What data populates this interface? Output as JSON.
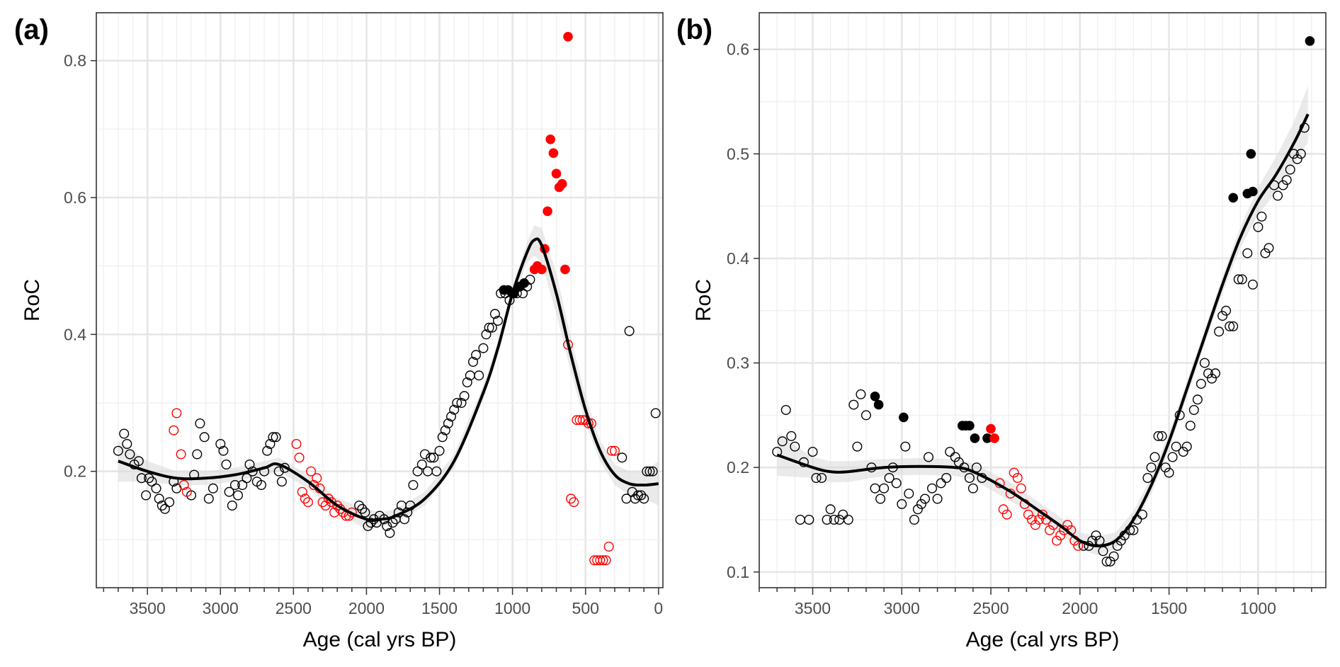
{
  "chart_data": [
    {
      "type": "scatter",
      "panel_label": "(a)",
      "xlabel": "Age (cal yrs BP)",
      "ylabel": "RoC",
      "x_reversed": true,
      "xlim": [
        3850,
        -30
      ],
      "ylim": [
        0.03,
        0.87
      ],
      "x_ticks": [
        3500,
        3000,
        2500,
        2000,
        1500,
        1000,
        500,
        0
      ],
      "x_tick_labels": [
        "3500",
        "3000",
        "2500",
        "2000",
        "1500",
        "1000",
        "500",
        "0"
      ],
      "y_ticks": [
        0.2,
        0.4,
        0.6,
        0.8
      ],
      "y_tick_labels": [
        "0.2",
        "0.4",
        "0.6",
        "0.8"
      ],
      "grid": true,
      "colors": {
        "black": "#000000",
        "red": "#ff0000",
        "band": "#d9d9d9"
      },
      "series": [
        {
          "style": "open",
          "color": "#000000",
          "x": [
            3700,
            3660,
            3640,
            3620,
            3590,
            3560,
            3540,
            3510,
            3490,
            3470,
            3440,
            3420,
            3400,
            3380,
            3350,
            3320,
            3300,
            3200,
            3180,
            3160,
            3140,
            3110,
            3080,
            3050,
            3000,
            2980,
            2960,
            2940,
            2920,
            2900,
            2880,
            2850,
            2820,
            2800,
            2780,
            2750,
            2720,
            2700,
            2680,
            2660,
            2640,
            2620,
            2600,
            2580,
            2560,
            2050,
            2030,
            2010,
            1990,
            1970,
            1950,
            1930,
            1910,
            1880,
            1860,
            1840,
            1820,
            1800,
            1780,
            1760,
            1740,
            1720,
            1700,
            1680,
            1650,
            1620,
            1600,
            1580,
            1560,
            1540,
            1520,
            1500,
            1480,
            1460,
            1440,
            1420,
            1400,
            1380,
            1350,
            1330,
            1310,
            1290,
            1270,
            1250,
            1230,
            1200,
            1180,
            1160,
            1140,
            1120,
            1100,
            1080,
            1050,
            1020,
            1000,
            970,
            950,
            930,
            900,
            880,
            250,
            220,
            200,
            180,
            160,
            140,
            120,
            100,
            80,
            60,
            40,
            20
          ],
          "y": [
            0.23,
            0.255,
            0.24,
            0.225,
            0.21,
            0.215,
            0.19,
            0.165,
            0.19,
            0.185,
            0.175,
            0.16,
            0.15,
            0.145,
            0.155,
            0.185,
            0.175,
            0.165,
            0.195,
            0.225,
            0.27,
            0.25,
            0.16,
            0.175,
            0.24,
            0.23,
            0.21,
            0.17,
            0.15,
            0.18,
            0.165,
            0.18,
            0.19,
            0.21,
            0.2,
            0.185,
            0.18,
            0.2,
            0.23,
            0.24,
            0.25,
            0.25,
            0.2,
            0.185,
            0.205,
            0.15,
            0.145,
            0.14,
            0.12,
            0.125,
            0.13,
            0.125,
            0.135,
            0.13,
            0.12,
            0.11,
            0.125,
            0.13,
            0.14,
            0.15,
            0.13,
            0.14,
            0.15,
            0.18,
            0.2,
            0.21,
            0.225,
            0.2,
            0.22,
            0.22,
            0.2,
            0.23,
            0.25,
            0.26,
            0.27,
            0.28,
            0.29,
            0.3,
            0.3,
            0.31,
            0.33,
            0.34,
            0.36,
            0.37,
            0.34,
            0.38,
            0.4,
            0.41,
            0.41,
            0.43,
            0.42,
            0.46,
            0.46,
            0.45,
            0.46,
            0.46,
            0.47,
            0.46,
            0.47,
            0.48,
            0.22,
            0.16,
            0.405,
            0.17,
            0.16,
            0.165,
            0.165,
            0.16,
            0.2,
            0.2,
            0.2,
            0.285
          ]
        },
        {
          "style": "open",
          "color": "#ff0000",
          "x": [
            3320,
            3300,
            3270,
            3250,
            3230,
            2480,
            2460,
            2440,
            2420,
            2400,
            2380,
            2360,
            2340,
            2320,
            2300,
            2280,
            2260,
            2240,
            2220,
            2200,
            2180,
            2160,
            2140,
            2120,
            2100,
            620,
            600,
            580,
            560,
            540,
            520,
            500,
            480,
            460,
            440,
            420,
            400,
            380,
            360,
            340,
            320,
            300
          ],
          "y": [
            0.26,
            0.285,
            0.225,
            0.18,
            0.17,
            0.24,
            0.22,
            0.17,
            0.16,
            0.155,
            0.2,
            0.18,
            0.19,
            0.175,
            0.155,
            0.15,
            0.16,
            0.155,
            0.14,
            0.15,
            0.145,
            0.14,
            0.135,
            0.135,
            0.14,
            0.385,
            0.16,
            0.155,
            0.275,
            0.275,
            0.275,
            0.275,
            0.27,
            0.27,
            0.07,
            0.07,
            0.07,
            0.07,
            0.07,
            0.09,
            0.23,
            0.23
          ]
        },
        {
          "style": "filled",
          "color": "#000000",
          "x": [
            1060,
            1030,
            990,
            950,
            920
          ],
          "y": [
            0.465,
            0.465,
            0.46,
            0.47,
            0.475
          ]
        },
        {
          "style": "filled",
          "color": "#ff0000",
          "x": [
            850,
            830,
            800,
            780,
            760,
            740,
            720,
            700,
            680,
            660,
            640,
            620
          ],
          "y": [
            0.495,
            0.5,
            0.495,
            0.525,
            0.58,
            0.685,
            0.665,
            0.635,
            0.615,
            0.62,
            0.495,
            0.835
          ]
        }
      ],
      "smooth": {
        "x": [
          3700,
          3500,
          3300,
          3100,
          2900,
          2700,
          2600,
          2400,
          2200,
          2000,
          1900,
          1800,
          1600,
          1400,
          1200,
          1100,
          1000,
          900,
          850,
          800,
          700,
          600,
          500,
          400,
          300,
          200,
          100,
          0
        ],
        "y": [
          0.215,
          0.2,
          0.19,
          0.19,
          0.195,
          0.205,
          0.21,
          0.185,
          0.15,
          0.13,
          0.13,
          0.135,
          0.16,
          0.215,
          0.315,
          0.38,
          0.46,
          0.52,
          0.538,
          0.53,
          0.46,
          0.37,
          0.29,
          0.23,
          0.195,
          0.182,
          0.18,
          0.182
        ],
        "upper": [
          0.245,
          0.215,
          0.2,
          0.2,
          0.205,
          0.215,
          0.22,
          0.195,
          0.16,
          0.145,
          0.14,
          0.145,
          0.17,
          0.225,
          0.325,
          0.39,
          0.47,
          0.535,
          0.56,
          0.555,
          0.49,
          0.395,
          0.31,
          0.245,
          0.21,
          0.2,
          0.2,
          0.215
        ],
        "lower": [
          0.185,
          0.185,
          0.18,
          0.18,
          0.185,
          0.195,
          0.2,
          0.175,
          0.14,
          0.115,
          0.12,
          0.125,
          0.15,
          0.205,
          0.305,
          0.37,
          0.45,
          0.505,
          0.515,
          0.505,
          0.43,
          0.345,
          0.27,
          0.215,
          0.18,
          0.165,
          0.16,
          0.15
        ]
      }
    },
    {
      "type": "scatter",
      "panel_label": "(b)",
      "xlabel": "Age (cal yrs BP)",
      "ylabel": "RoC",
      "x_reversed": true,
      "xlim": [
        3800,
        620
      ],
      "ylim": [
        0.085,
        0.635
      ],
      "x_ticks": [
        3500,
        3000,
        2500,
        2000,
        1500,
        1000
      ],
      "x_tick_labels": [
        "3500",
        "3000",
        "2500",
        "2000",
        "1500",
        "1000"
      ],
      "y_ticks": [
        0.1,
        0.2,
        0.3,
        0.4,
        0.5,
        0.6
      ],
      "y_tick_labels": [
        "0.1",
        "0.2",
        "0.3",
        "0.4",
        "0.5",
        "0.6"
      ],
      "grid": true,
      "colors": {
        "black": "#000000",
        "red": "#ff0000",
        "band": "#d9d9d9"
      },
      "series": [
        {
          "style": "open",
          "color": "#000000",
          "x": [
            3700,
            3670,
            3650,
            3620,
            3600,
            3570,
            3550,
            3520,
            3500,
            3480,
            3450,
            3420,
            3400,
            3380,
            3350,
            3330,
            3300,
            3270,
            3250,
            3230,
            3200,
            3170,
            3150,
            3120,
            3100,
            3070,
            3050,
            3030,
            3000,
            2980,
            2960,
            2930,
            2910,
            2890,
            2870,
            2850,
            2830,
            2800,
            2780,
            2750,
            2730,
            2700,
            2680,
            2650,
            2620,
            2600,
            2580,
            2550,
            1980,
            1950,
            1930,
            1910,
            1890,
            1870,
            1850,
            1830,
            1810,
            1790,
            1770,
            1750,
            1720,
            1700,
            1680,
            1650,
            1620,
            1600,
            1580,
            1560,
            1540,
            1520,
            1500,
            1480,
            1460,
            1440,
            1420,
            1400,
            1380,
            1360,
            1340,
            1320,
            1300,
            1280,
            1260,
            1240,
            1220,
            1200,
            1180,
            1160,
            1140,
            1110,
            1090,
            1060,
            1030,
            1000,
            980,
            960,
            940,
            910,
            890,
            860,
            840,
            820,
            800,
            780,
            760,
            740
          ],
          "y": [
            0.215,
            0.225,
            0.255,
            0.23,
            0.22,
            0.15,
            0.205,
            0.15,
            0.215,
            0.19,
            0.19,
            0.15,
            0.16,
            0.15,
            0.15,
            0.155,
            0.15,
            0.26,
            0.22,
            0.27,
            0.25,
            0.2,
            0.18,
            0.17,
            0.18,
            0.19,
            0.2,
            0.185,
            0.165,
            0.22,
            0.175,
            0.15,
            0.16,
            0.165,
            0.17,
            0.21,
            0.18,
            0.17,
            0.185,
            0.19,
            0.215,
            0.21,
            0.205,
            0.2,
            0.19,
            0.18,
            0.2,
            0.19,
            0.125,
            0.125,
            0.13,
            0.135,
            0.13,
            0.12,
            0.11,
            0.11,
            0.115,
            0.125,
            0.13,
            0.135,
            0.14,
            0.14,
            0.15,
            0.155,
            0.19,
            0.2,
            0.21,
            0.23,
            0.23,
            0.2,
            0.195,
            0.21,
            0.22,
            0.25,
            0.215,
            0.22,
            0.24,
            0.255,
            0.265,
            0.28,
            0.3,
            0.29,
            0.285,
            0.29,
            0.33,
            0.345,
            0.35,
            0.335,
            0.335,
            0.38,
            0.38,
            0.405,
            0.375,
            0.43,
            0.44,
            0.405,
            0.41,
            0.47,
            0.46,
            0.47,
            0.475,
            0.485,
            0.5,
            0.495,
            0.5,
            0.525
          ]
        },
        {
          "style": "open",
          "color": "#ff0000",
          "x": [
            2450,
            2430,
            2410,
            2390,
            2370,
            2350,
            2330,
            2310,
            2290,
            2270,
            2250,
            2230,
            2210,
            2190,
            2170,
            2150,
            2130,
            2110,
            2090,
            2070,
            2050,
            2030,
            2010
          ],
          "y": [
            0.185,
            0.16,
            0.155,
            0.175,
            0.195,
            0.19,
            0.18,
            0.165,
            0.155,
            0.15,
            0.145,
            0.15,
            0.155,
            0.15,
            0.14,
            0.145,
            0.13,
            0.135,
            0.14,
            0.145,
            0.14,
            0.13,
            0.125
          ]
        },
        {
          "style": "filled",
          "color": "#000000",
          "x": [
            3150,
            3130,
            2990,
            2660,
            2640,
            2620,
            2590,
            2520,
            1140,
            1060,
            1040,
            1030,
            710
          ],
          "y": [
            0.268,
            0.26,
            0.248,
            0.24,
            0.24,
            0.24,
            0.228,
            0.228,
            0.458,
            0.462,
            0.5,
            0.464,
            0.608
          ]
        },
        {
          "style": "filled",
          "color": "#ff0000",
          "x": [
            2500,
            2480
          ],
          "y": [
            0.237,
            0.228
          ]
        }
      ],
      "smooth": {
        "x": [
          3700,
          3500,
          3400,
          3300,
          3100,
          2900,
          2700,
          2600,
          2400,
          2200,
          2100,
          2000,
          1900,
          1800,
          1700,
          1600,
          1500,
          1400,
          1300,
          1200,
          1100,
          1000,
          900,
          800,
          720
        ],
        "y": [
          0.212,
          0.2,
          0.196,
          0.196,
          0.2,
          0.201,
          0.2,
          0.196,
          0.178,
          0.155,
          0.143,
          0.13,
          0.125,
          0.13,
          0.15,
          0.183,
          0.225,
          0.275,
          0.325,
          0.375,
          0.42,
          0.455,
          0.48,
          0.51,
          0.538
        ],
        "upper": [
          0.232,
          0.21,
          0.206,
          0.206,
          0.208,
          0.209,
          0.208,
          0.204,
          0.187,
          0.163,
          0.151,
          0.138,
          0.134,
          0.138,
          0.158,
          0.191,
          0.233,
          0.283,
          0.332,
          0.383,
          0.43,
          0.468,
          0.497,
          0.53,
          0.565
        ],
        "lower": [
          0.192,
          0.19,
          0.186,
          0.186,
          0.192,
          0.193,
          0.192,
          0.188,
          0.169,
          0.147,
          0.135,
          0.122,
          0.116,
          0.122,
          0.142,
          0.175,
          0.217,
          0.267,
          0.318,
          0.367,
          0.41,
          0.442,
          0.463,
          0.49,
          0.511
        ]
      }
    }
  ]
}
